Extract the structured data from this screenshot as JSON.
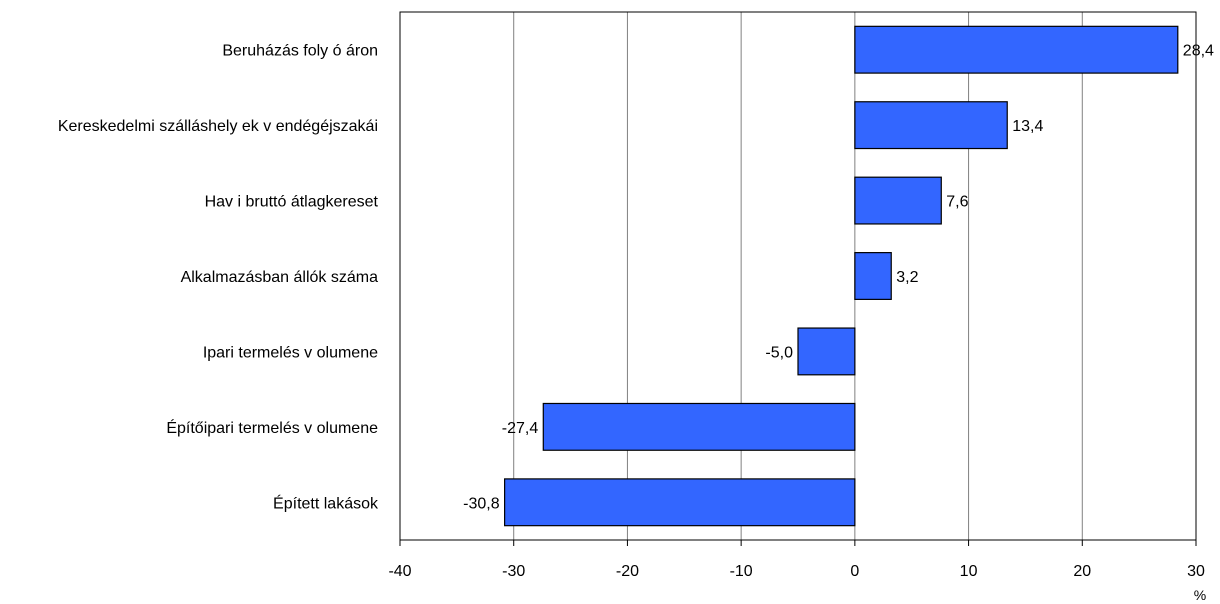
{
  "chart_data": {
    "type": "bar",
    "orientation": "horizontal",
    "categories": [
      "Beruházás foly ó áron",
      "Kereskedelmi szálláshely ek v endégéjszakái",
      "Hav i bruttó átlagkereset",
      "Alkalmazásban állók száma",
      "Ipari termelés v olumene",
      "Építőipari termelés v olumene",
      "Épített lakások"
    ],
    "values": [
      28.4,
      13.4,
      7.6,
      3.2,
      -5.0,
      -27.4,
      -30.8
    ],
    "value_labels": [
      "28,4",
      "13,4",
      "7,6",
      "3,2",
      "-5,0",
      "-27,4",
      "-30,8"
    ],
    "xlim": [
      -40,
      30
    ],
    "xticks": [
      -40,
      -30,
      -20,
      -10,
      0,
      10,
      20,
      30
    ],
    "xunit": "%",
    "grid": true,
    "bar_color": "#3366ff"
  }
}
